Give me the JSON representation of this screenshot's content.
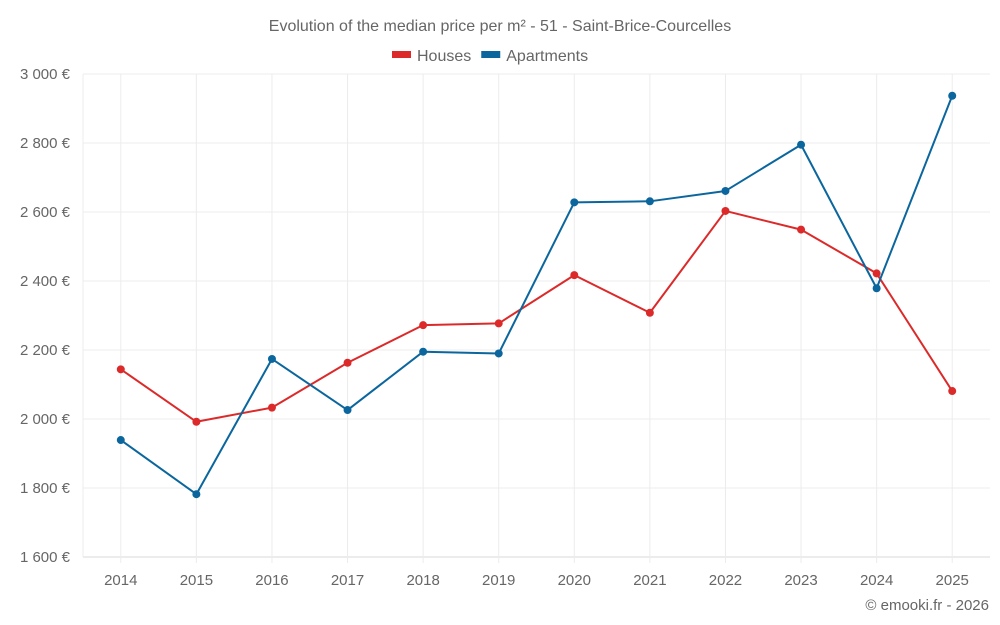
{
  "chart_data": {
    "type": "line",
    "title": "Evolution of the median price per m² - 51 - Saint-Brice-Courcelles",
    "xlabel": "",
    "ylabel": "",
    "categories": [
      "2014",
      "2015",
      "2016",
      "2017",
      "2018",
      "2019",
      "2020",
      "2021",
      "2022",
      "2023",
      "2024",
      "2025"
    ],
    "series": [
      {
        "name": "Houses",
        "color": "#dc2a2a",
        "values": [
          2144,
          1992,
          2033,
          2163,
          2272,
          2277,
          2417,
          2308,
          2603,
          2549,
          2422,
          2081
        ]
      },
      {
        "name": "Apartments",
        "color": "#0b669e",
        "values": [
          1939,
          1782,
          2174,
          2026,
          2195,
          2190,
          2628,
          2631,
          2661,
          2795,
          2379,
          2937
        ]
      }
    ],
    "ylim": [
      1600,
      3000
    ],
    "yticks": [
      1600,
      1800,
      2000,
      2200,
      2400,
      2600,
      2800,
      3000
    ],
    "ytick_labels": [
      "1 600 €",
      "1 800 €",
      "2 000 €",
      "2 200 €",
      "2 400 €",
      "2 600 €",
      "2 800 €",
      "3 000 €"
    ],
    "grid": true,
    "legend_position": "top-center"
  },
  "credit": "© emooki.fr - 2026"
}
